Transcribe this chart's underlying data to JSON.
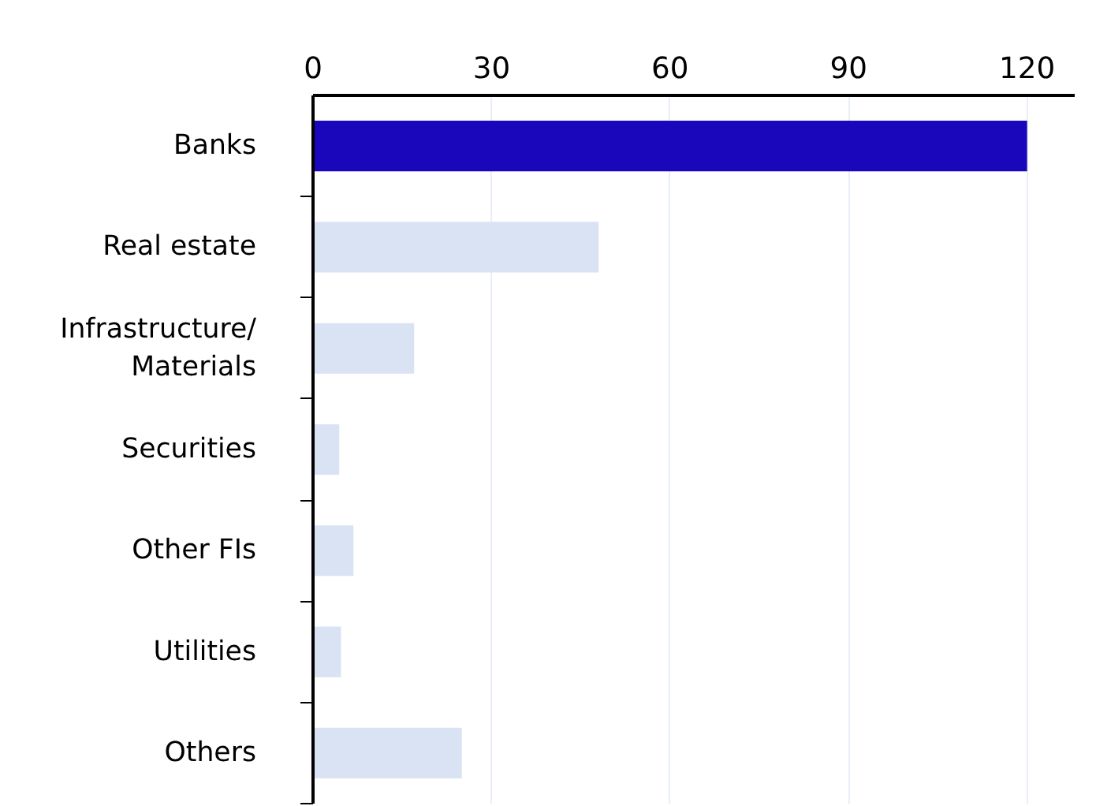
{
  "chart_data": {
    "type": "bar",
    "orientation": "horizontal",
    "categories": [
      "Banks",
      "Real estate",
      "Infrastructure/\nMaterials",
      "Securities",
      "Other FIs",
      "Utilities",
      "Others"
    ],
    "values": [
      120,
      48,
      17,
      4.4,
      6.8,
      4.7,
      25
    ],
    "colors": [
      "#1a06bb",
      "#dae3f3",
      "#dae3f3",
      "#dae3f3",
      "#dae3f3",
      "#dae3f3",
      "#dae3f3"
    ],
    "xlim": [
      0,
      128
    ],
    "xticks": [
      0,
      30,
      60,
      90,
      120
    ],
    "grid": "x"
  }
}
